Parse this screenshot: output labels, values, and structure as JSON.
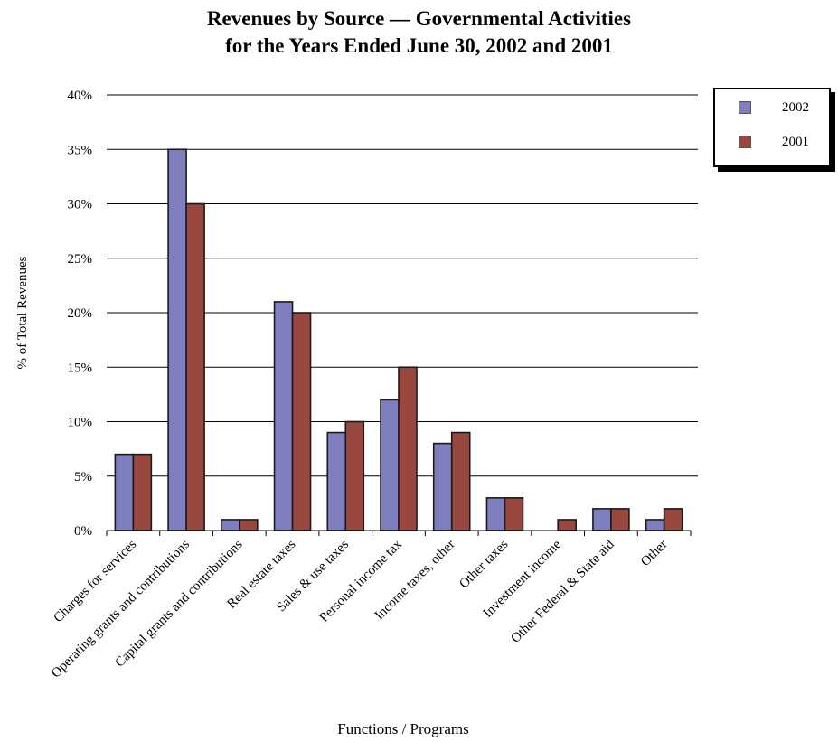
{
  "chart_data": {
    "type": "bar",
    "title_line1": "Revenues by Source — Governmental Activities",
    "title_line2": "for the Years Ended June 30, 2002 and 2001",
    "xlabel": "Functions / Programs",
    "ylabel": "% of Total Revenues",
    "ylim": [
      0,
      40
    ],
    "yticks": [
      0,
      5,
      10,
      15,
      20,
      25,
      30,
      35,
      40
    ],
    "ytick_labels": [
      "0%",
      "5%",
      "10%",
      "15%",
      "20%",
      "25%",
      "30%",
      "35%",
      "40%"
    ],
    "grid": true,
    "legend_position": "top-right",
    "categories": [
      "Charges for services",
      "Operating grants and contributions",
      "Capital grants and contributions",
      "Real estate taxes",
      "Sales & use taxes",
      "Personal income tax",
      "Income taxes, other",
      "Other taxes",
      "Investment income",
      "Other Federal & State aid",
      "Other"
    ],
    "series": [
      {
        "name": "2002",
        "color": "#7f7fbf",
        "values": [
          7,
          35,
          1,
          21,
          9,
          12,
          8,
          3,
          0,
          2,
          1
        ]
      },
      {
        "name": "2001",
        "color": "#98483f",
        "values": [
          7,
          30,
          1,
          20,
          10,
          15,
          9,
          3,
          1,
          2,
          2
        ]
      }
    ]
  }
}
